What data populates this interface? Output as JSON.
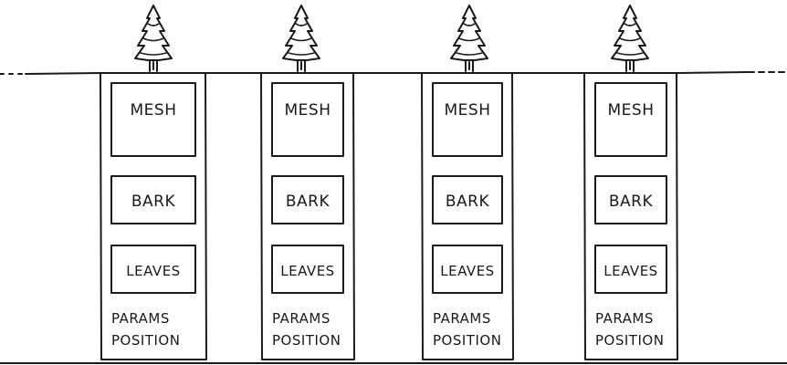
{
  "diagram": {
    "columns": [
      {
        "mesh": "MESH",
        "bark": "BARK",
        "leaves": "LEAVES",
        "params": "PARAMS",
        "position": "POSITION"
      },
      {
        "mesh": "MESH",
        "bark": "BARK",
        "leaves": "LEAVES",
        "params": "PARAMS",
        "position": "POSITION"
      },
      {
        "mesh": "MESH",
        "bark": "BARK",
        "leaves": "LEAVES",
        "params": "PARAMS",
        "position": "POSITION"
      },
      {
        "mesh": "MESH",
        "bark": "BARK",
        "leaves": "LEAVES",
        "params": "PARAMS",
        "position": "POSITION"
      }
    ],
    "icons": {
      "tree": "pine-tree-icon"
    },
    "colors": {
      "ink": "#1a1a1a",
      "background": "#ffffff"
    }
  }
}
